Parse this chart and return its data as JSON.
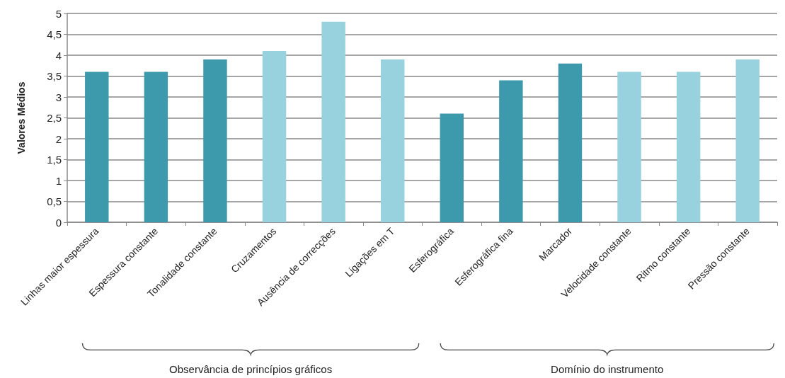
{
  "chart_data": {
    "type": "bar",
    "ylabel": "Valores Médios",
    "categories": [
      "Linhas maior espessura",
      "Espessura constante",
      "Tonalidade constante",
      "Cruzamentos",
      "Ausência de correcções",
      "Ligações em T",
      "Esferográfica",
      "Esferográfica fina",
      "Marcador",
      "Velocidade constante",
      "Ritmo constante",
      "Pressão constante"
    ],
    "values": [
      3.6,
      3.6,
      3.9,
      4.1,
      4.8,
      3.9,
      2.6,
      3.4,
      3.8,
      3.6,
      3.6,
      3.9
    ],
    "colors": [
      "#3d9aad",
      "#3d9aad",
      "#3d9aad",
      "#97d2de",
      "#97d2de",
      "#97d2de",
      "#3d9aad",
      "#3d9aad",
      "#3d9aad",
      "#97d2de",
      "#97d2de",
      "#97d2de"
    ],
    "ylim": [
      0,
      5
    ],
    "yticks": [
      0,
      {
        "value": 0.5,
        "label": "0,5"
      },
      1,
      {
        "value": 1.5,
        "label": "1,5"
      },
      2,
      {
        "value": 2.5,
        "label": "2,5"
      },
      3,
      {
        "value": 3.5,
        "label": "3,5"
      },
      4,
      {
        "value": 4.5,
        "label": "4,5"
      },
      5
    ],
    "grid": "y",
    "annotations": [
      "Observância de princípios gráficos",
      "Domínio do instrumento"
    ]
  }
}
